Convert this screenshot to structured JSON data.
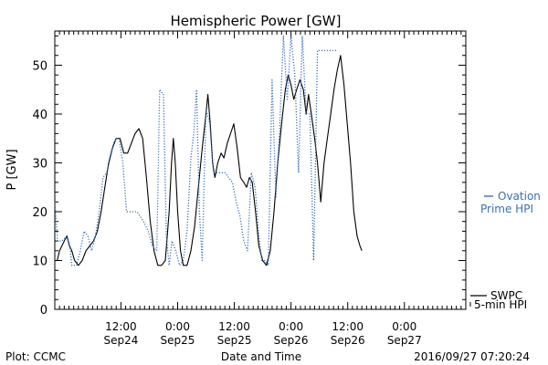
{
  "chart_data": {
    "type": "line",
    "title": "Hemispheric Power [GW]",
    "ylabel": "P [GW]",
    "xlabel": "Date and Time",
    "ylim": [
      0,
      57
    ],
    "yticks": [
      0,
      10,
      20,
      30,
      40,
      50
    ],
    "xlim": [
      0,
      87
    ],
    "x_unit": "hours since 2016/09/23 22:00",
    "xticks": [
      {
        "x": 14,
        "time": "12:00",
        "date": "Sep24"
      },
      {
        "x": 26,
        "time": "0:00",
        "date": "Sep25"
      },
      {
        "x": 38,
        "time": "12:00",
        "date": "Sep25"
      },
      {
        "x": 50,
        "time": "0:00",
        "date": "Sep26"
      },
      {
        "x": 62,
        "time": "12:00",
        "date": "Sep26"
      },
      {
        "x": 74,
        "time": "0:00",
        "date": "Sep27"
      }
    ],
    "grid": false,
    "series": [
      {
        "name": "SWPC 5-min HPI",
        "label_lines": [
          "SWPC",
          "5-min HPI"
        ],
        "style": "solid",
        "color": "#000000",
        "points": [
          [
            0.0,
            10
          ],
          [
            0.5,
            10
          ],
          [
            1.0,
            12
          ],
          [
            1.5,
            13
          ],
          [
            2.0,
            14
          ],
          [
            2.6,
            15
          ],
          [
            3.1,
            13
          ],
          [
            3.6,
            12
          ],
          [
            4.2,
            10
          ],
          [
            5.0,
            9
          ],
          [
            5.8,
            10
          ],
          [
            6.6,
            12
          ],
          [
            7.4,
            13
          ],
          [
            8.2,
            14
          ],
          [
            9.0,
            16
          ],
          [
            9.8,
            20
          ],
          [
            10.6,
            25
          ],
          [
            11.4,
            30
          ],
          [
            12.2,
            33
          ],
          [
            13.0,
            35
          ],
          [
            13.8,
            35
          ],
          [
            14.6,
            32
          ],
          [
            15.4,
            32
          ],
          [
            16.2,
            34
          ],
          [
            17.0,
            36
          ],
          [
            17.8,
            37
          ],
          [
            18.6,
            35
          ],
          [
            19.4,
            27
          ],
          [
            20.2,
            18
          ],
          [
            21.0,
            12
          ],
          [
            21.8,
            9
          ],
          [
            22.6,
            9
          ],
          [
            23.4,
            10
          ],
          [
            24.2,
            20
          ],
          [
            24.7,
            30
          ],
          [
            25.1,
            35
          ],
          [
            25.5,
            30
          ],
          [
            26.0,
            20
          ],
          [
            26.6,
            12
          ],
          [
            27.2,
            9
          ],
          [
            28.0,
            9
          ],
          [
            28.8,
            12
          ],
          [
            29.6,
            17
          ],
          [
            30.4,
            25
          ],
          [
            31.2,
            33
          ],
          [
            32.0,
            40
          ],
          [
            32.4,
            44
          ],
          [
            32.9,
            38
          ],
          [
            33.4,
            30
          ],
          [
            33.9,
            27
          ],
          [
            34.5,
            30
          ],
          [
            35.2,
            32
          ],
          [
            35.8,
            31
          ],
          [
            36.5,
            34
          ],
          [
            37.2,
            36
          ],
          [
            37.9,
            38
          ],
          [
            38.6,
            33
          ],
          [
            39.3,
            27
          ],
          [
            40.0,
            26
          ],
          [
            40.6,
            25
          ],
          [
            41.2,
            27
          ],
          [
            41.8,
            26
          ],
          [
            42.5,
            20
          ],
          [
            43.2,
            13
          ],
          [
            44.0,
            10
          ],
          [
            44.8,
            9
          ],
          [
            45.6,
            12
          ],
          [
            46.4,
            20
          ],
          [
            47.2,
            30
          ],
          [
            48.0,
            38
          ],
          [
            48.8,
            45
          ],
          [
            49.4,
            48
          ],
          [
            50.0,
            46
          ],
          [
            50.6,
            43
          ],
          [
            51.2,
            45
          ],
          [
            51.9,
            47
          ],
          [
            52.6,
            45
          ],
          [
            53.2,
            40
          ],
          [
            53.7,
            44
          ],
          [
            54.3,
            40
          ],
          [
            55.0,
            35
          ],
          [
            55.6,
            30
          ],
          [
            56.3,
            22
          ],
          [
            57.0,
            30
          ],
          [
            57.7,
            35
          ],
          [
            58.4,
            40
          ],
          [
            59.1,
            45
          ],
          [
            59.8,
            49
          ],
          [
            60.5,
            52
          ],
          [
            61.2,
            46
          ],
          [
            61.9,
            38
          ],
          [
            62.6,
            30
          ],
          [
            63.3,
            20
          ],
          [
            64.0,
            15
          ],
          [
            64.6,
            13
          ],
          [
            65.0,
            12
          ]
        ]
      },
      {
        "name": "Ovation Prime HPI",
        "label_lines": [
          "Ovation",
          "Prime HPI"
        ],
        "style": "dotted",
        "color": "#3a6fb8",
        "points": [
          [
            0.0,
            22
          ],
          [
            0.6,
            14
          ],
          [
            1.5,
            14
          ],
          [
            2.5,
            15
          ],
          [
            3.2,
            13
          ],
          [
            3.6,
            9
          ],
          [
            4.6,
            9
          ],
          [
            5.4,
            12
          ],
          [
            6.2,
            16
          ],
          [
            7.0,
            15
          ],
          [
            7.8,
            12
          ],
          [
            8.6,
            15
          ],
          [
            9.4,
            20
          ],
          [
            10.2,
            27
          ],
          [
            11.0,
            28
          ],
          [
            11.8,
            31
          ],
          [
            12.4,
            34
          ],
          [
            13.0,
            35
          ],
          [
            13.6,
            35
          ],
          [
            14.4,
            30
          ],
          [
            15.2,
            20
          ],
          [
            16.0,
            20
          ],
          [
            17.4,
            20
          ],
          [
            18.8,
            18
          ],
          [
            19.8,
            16
          ],
          [
            20.6,
            13
          ],
          [
            21.6,
            12
          ],
          [
            22.2,
            45
          ],
          [
            23.0,
            44
          ],
          [
            23.6,
            15
          ],
          [
            24.2,
            9
          ],
          [
            24.8,
            14
          ],
          [
            25.6,
            12
          ],
          [
            26.4,
            9
          ],
          [
            27.2,
            10
          ],
          [
            28.0,
            16
          ],
          [
            28.8,
            31
          ],
          [
            29.4,
            36
          ],
          [
            30.0,
            45
          ],
          [
            30.6,
            20
          ],
          [
            31.2,
            10
          ],
          [
            32.0,
            41
          ],
          [
            32.8,
            38
          ],
          [
            33.6,
            28
          ],
          [
            34.4,
            28
          ],
          [
            35.2,
            28
          ],
          [
            36.0,
            28
          ],
          [
            36.8,
            27
          ],
          [
            37.6,
            26
          ],
          [
            38.4,
            22
          ],
          [
            39.2,
            19
          ],
          [
            40.0,
            14
          ],
          [
            40.8,
            12
          ],
          [
            41.6,
            28
          ],
          [
            42.4,
            25
          ],
          [
            43.2,
            15
          ],
          [
            43.8,
            10
          ],
          [
            44.4,
            10
          ],
          [
            45.2,
            9
          ],
          [
            46.0,
            47
          ],
          [
            46.8,
            23
          ],
          [
            47.6,
            37
          ],
          [
            48.4,
            56
          ],
          [
            49.2,
            43
          ],
          [
            50.0,
            56
          ],
          [
            50.8,
            48
          ],
          [
            51.6,
            28
          ],
          [
            52.4,
            56
          ],
          [
            53.2,
            40
          ],
          [
            54.0,
            40
          ],
          [
            54.8,
            10
          ],
          [
            55.6,
            53
          ],
          [
            56.4,
            53
          ],
          [
            57.2,
            53
          ],
          [
            58.0,
            53
          ],
          [
            58.8,
            53
          ],
          [
            59.6,
            53
          ]
        ]
      }
    ]
  },
  "footer": {
    "plot_credit": "Plot: CCMC",
    "timestamp": "2016/09/27 07:20:24"
  }
}
